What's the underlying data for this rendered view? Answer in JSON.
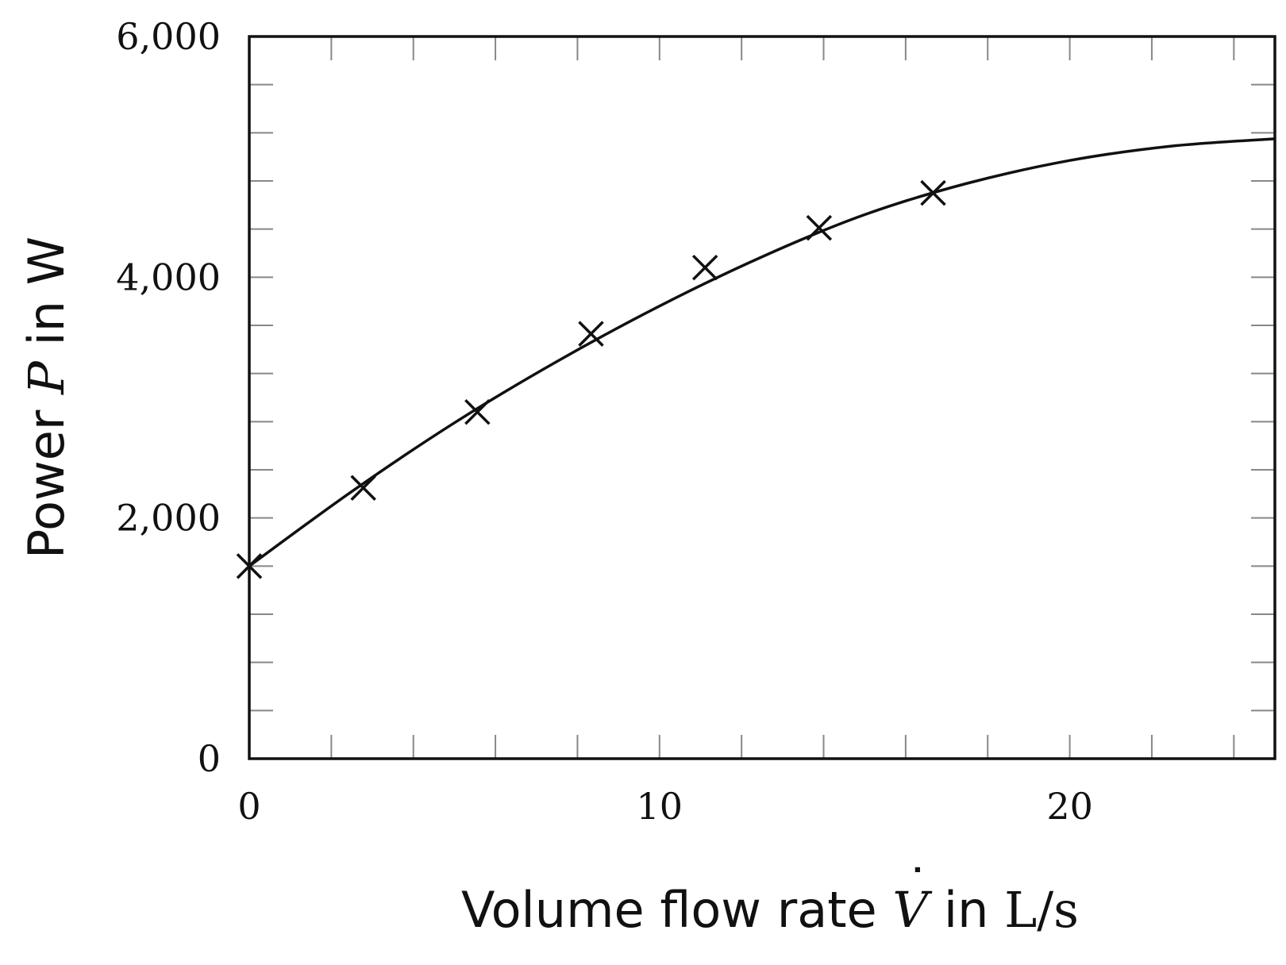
{
  "chart_data": {
    "type": "scatter",
    "title": "",
    "xlabel": {
      "prefix": "Volume flow rate ",
      "symbol": "V",
      "middle": " in ",
      "unit": "L/s"
    },
    "ylabel": {
      "prefix": "Power ",
      "symbol": "P",
      "middle": " in ",
      "unit": "W"
    },
    "xlim": [
      0,
      25
    ],
    "ylim": [
      0,
      6000
    ],
    "x_ticks": [
      {
        "value": 0,
        "label": "0"
      },
      {
        "value": 10,
        "label": "10"
      },
      {
        "value": 20,
        "label": "20"
      }
    ],
    "y_ticks": [
      {
        "value": 0,
        "label": "0"
      },
      {
        "value": 2000,
        "label": "2,000"
      },
      {
        "value": 4000,
        "label": "4,000"
      },
      {
        "value": 6000,
        "label": "6,000"
      }
    ],
    "x_minor_step": 2,
    "y_minor_step": 400,
    "grid": false,
    "legend": "none",
    "series": [
      {
        "kind": "markers",
        "marker": "x",
        "x": [
          0,
          2.78,
          5.56,
          8.33,
          11.11,
          13.89,
          16.67
        ],
        "y": [
          1600,
          2250,
          2880,
          3530,
          4080,
          4410,
          4700
        ]
      },
      {
        "kind": "line",
        "x": [
          0,
          2.5,
          5,
          7.5,
          10,
          12.5,
          15,
          17.5,
          20,
          22.5,
          25
        ],
        "y": [
          1600,
          2220,
          2790,
          3300,
          3760,
          4170,
          4520,
          4780,
          4970,
          5090,
          5150
        ]
      }
    ],
    "colors": {
      "ink": "#111111",
      "minor_tick": "#888888"
    }
  }
}
